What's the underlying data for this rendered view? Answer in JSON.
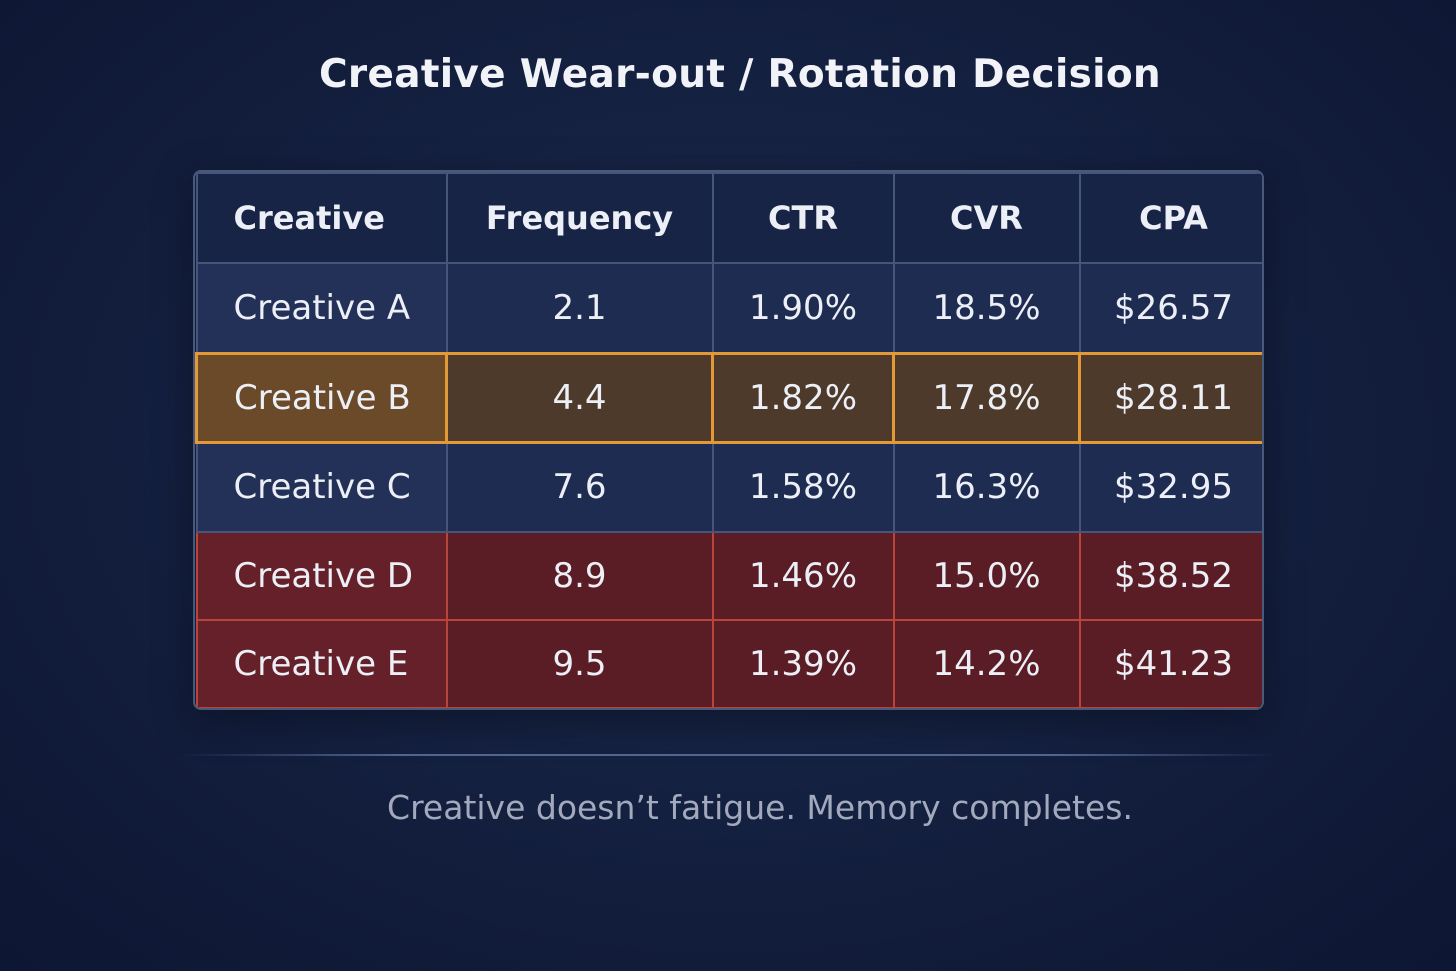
{
  "title": "Creative Wear-out / Rotation Decision",
  "caption": "Creative doesn’t fatigue. Memory completes.",
  "colors": {
    "background": "#152141",
    "header_bg": "#172446",
    "normal_row": "#1f2c52",
    "highlight_row": "#4e3a2b",
    "highlight_border": "#e39a36",
    "alert_row": "#5a1c25",
    "alert_border": "#b8443a"
  },
  "chart_data": {
    "type": "table",
    "columns": [
      "Creative",
      "Frequency",
      "CTR",
      "CVR",
      "CPA"
    ],
    "rows": [
      {
        "cells": [
          "Creative A",
          "2.1",
          "1.90%",
          "18.5%",
          "$26.57"
        ],
        "status": "normal"
      },
      {
        "cells": [
          "Creative B",
          "4.4",
          "1.82%",
          "17.8%",
          "$28.11"
        ],
        "status": "highlight"
      },
      {
        "cells": [
          "Creative C",
          "7.6",
          "1.58%",
          "16.3%",
          "$32.95"
        ],
        "status": "normal"
      },
      {
        "cells": [
          "Creative D",
          "8.9",
          "1.46%",
          "15.0%",
          "$38.52"
        ],
        "status": "alert"
      },
      {
        "cells": [
          "Creative E",
          "9.5",
          "1.39%",
          "14.2%",
          "$41.23"
        ],
        "status": "alert"
      }
    ]
  }
}
